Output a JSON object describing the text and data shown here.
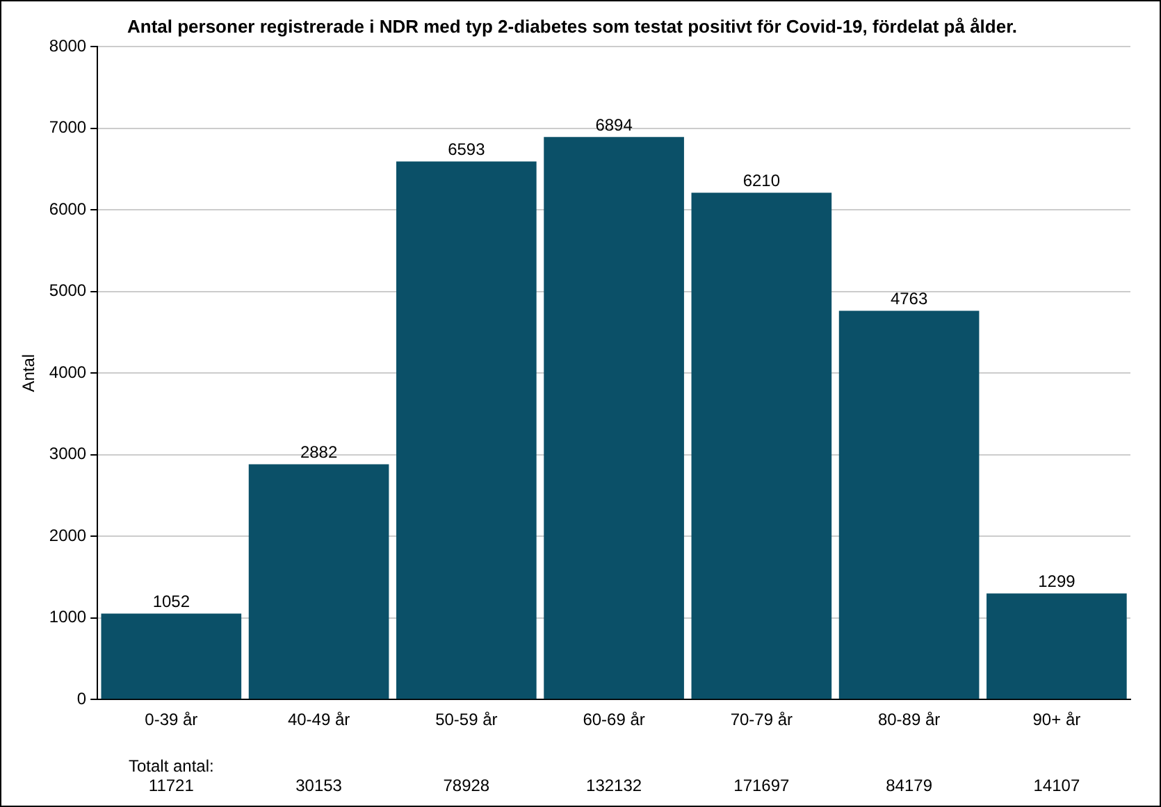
{
  "chart_data": {
    "type": "bar",
    "title": "Antal personer registrerade i NDR med typ 2-diabetes som testat positivt för Covid-19, fördelat på ålder.",
    "ylabel": "Antal",
    "categories": [
      "0-39 år",
      "40-49 år",
      "50-59 år",
      "60-69 år",
      "70-79 år",
      "80-89 år",
      "90+ år"
    ],
    "values": [
      1052,
      2882,
      6593,
      6894,
      6210,
      4763,
      1299
    ],
    "color": "#0b5068",
    "ylim": [
      0,
      8000
    ],
    "yticks": [
      0,
      1000,
      2000,
      3000,
      4000,
      5000,
      6000,
      7000,
      8000
    ],
    "grid": "y",
    "data_labels": true,
    "annotations": [
      "Totalt antal:",
      "11721",
      "30153",
      "78928",
      "132132",
      "171697",
      "84179",
      "14107"
    ]
  }
}
